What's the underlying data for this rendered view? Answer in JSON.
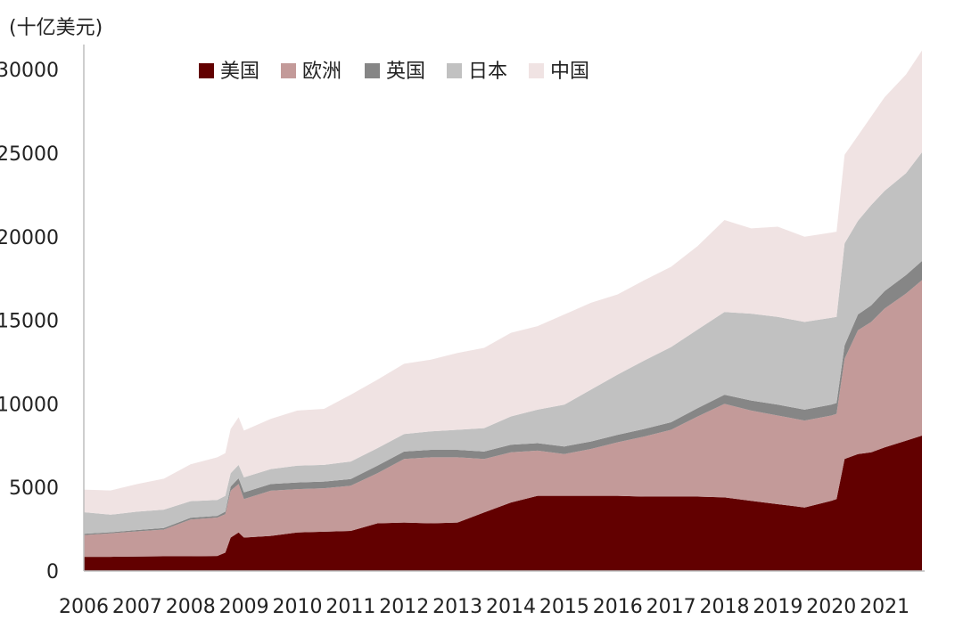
{
  "chart_data": {
    "type": "area",
    "stacked": true,
    "unit_label": "(十亿美元)",
    "title": "",
    "xlabel": "",
    "ylabel": "",
    "ylim": [
      0,
      31500
    ],
    "yticks": [
      0,
      5000,
      10000,
      15000,
      20000,
      25000,
      30000
    ],
    "xlim": [
      2006.0,
      2021.75
    ],
    "xticks": [
      "2006",
      "2007",
      "2008",
      "2009",
      "2010",
      "2011",
      "2012",
      "2013",
      "2014",
      "2015",
      "2016",
      "2017",
      "2018",
      "2019",
      "2020",
      "2021"
    ],
    "legend_position": "top",
    "grid": false,
    "x": [
      2006.0,
      2006.5,
      2007.0,
      2007.5,
      2008.0,
      2008.5,
      2008.65,
      2008.75,
      2008.9,
      2009.0,
      2009.5,
      2010.0,
      2010.5,
      2011.0,
      2011.5,
      2012.0,
      2012.5,
      2013.0,
      2013.5,
      2014.0,
      2014.5,
      2015.0,
      2015.5,
      2016.0,
      2016.5,
      2017.0,
      2017.5,
      2018.0,
      2018.5,
      2019.0,
      2019.5,
      2020.0,
      2020.1,
      2020.25,
      2020.5,
      2020.75,
      2021.0,
      2021.4,
      2021.7
    ],
    "series": [
      {
        "name": "美国",
        "color": "#620000",
        "values": [
          850,
          850,
          870,
          880,
          880,
          900,
          1100,
          2000,
          2300,
          2000,
          2100,
          2300,
          2350,
          2400,
          2850,
          2900,
          2850,
          2900,
          3500,
          4100,
          4500,
          4500,
          4500,
          4500,
          4450,
          4450,
          4450,
          4400,
          4200,
          4000,
          3800,
          4200,
          4300,
          6700,
          7000,
          7100,
          7400,
          7800,
          8100
        ]
      },
      {
        "name": "欧洲",
        "color": "#c39a99",
        "values": [
          1300,
          1400,
          1500,
          1600,
          2200,
          2300,
          2300,
          2800,
          2900,
          2300,
          2700,
          2600,
          2600,
          2700,
          3000,
          3800,
          3950,
          3900,
          3200,
          3000,
          2700,
          2500,
          2800,
          3200,
          3600,
          4000,
          4800,
          5600,
          5400,
          5300,
          5200,
          5100,
          5100,
          6000,
          7400,
          7800,
          8300,
          8800,
          9300
        ]
      },
      {
        "name": "英国",
        "color": "#868686",
        "values": [
          70,
          70,
          80,
          90,
          100,
          100,
          150,
          250,
          350,
          400,
          400,
          400,
          400,
          400,
          450,
          450,
          450,
          450,
          450,
          450,
          450,
          450,
          450,
          450,
          450,
          450,
          500,
          550,
          600,
          650,
          650,
          650,
          650,
          800,
          950,
          1000,
          1050,
          1100,
          1150
        ]
      },
      {
        "name": "日本",
        "color": "#c1c1c1",
        "values": [
          1300,
          1050,
          1100,
          1100,
          1000,
          950,
          950,
          800,
          800,
          900,
          900,
          1000,
          1000,
          1050,
          1050,
          1050,
          1100,
          1200,
          1400,
          1700,
          2000,
          2500,
          3100,
          3600,
          4100,
          4500,
          4700,
          4950,
          5200,
          5250,
          5250,
          5200,
          5150,
          6100,
          5600,
          6000,
          6000,
          6100,
          6500
        ]
      },
      {
        "name": "中国",
        "color": "#f0e3e3",
        "values": [
          1350,
          1450,
          1650,
          1850,
          2200,
          2550,
          2550,
          2650,
          2850,
          2800,
          3000,
          3300,
          3350,
          4000,
          4100,
          4200,
          4300,
          4600,
          4800,
          5000,
          5000,
          5400,
          5200,
          4800,
          4800,
          4800,
          5000,
          5500,
          5100,
          5400,
          5100,
          5100,
          5100,
          5300,
          5100,
          5300,
          5600,
          5900,
          6100
        ]
      }
    ]
  }
}
